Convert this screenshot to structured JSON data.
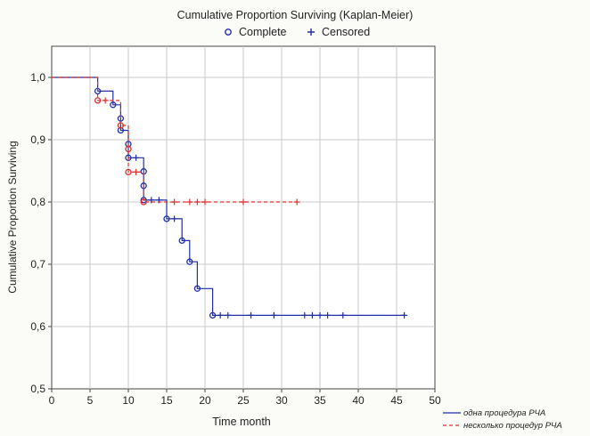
{
  "chart_data": {
    "type": "line",
    "title": "Cumulative Proportion Surviving (Kaplan-Meier)",
    "xlabel": "Time month",
    "ylabel": "Cumulative Proportion Surviving",
    "xlim": [
      0,
      50
    ],
    "ylim": [
      0.5,
      1.05
    ],
    "xticks": [
      0,
      5,
      10,
      15,
      20,
      25,
      30,
      35,
      40,
      45,
      50
    ],
    "yticks": [
      0.5,
      0.6,
      0.7,
      0.8,
      0.9,
      1.0
    ],
    "ytick_labels": [
      "0,5",
      "0,6",
      "0,7",
      "0,8",
      "0,9",
      "1,0"
    ],
    "grid": true,
    "marker_legend": [
      {
        "symbol": "o",
        "label": "Complete"
      },
      {
        "symbol": "+",
        "label": "Censored"
      }
    ],
    "series": [
      {
        "name": "одна процедура РЧА",
        "color": "#1f2fa8",
        "dash": "solid",
        "steps": [
          [
            0,
            1.0
          ],
          [
            6,
            0.978
          ],
          [
            8,
            0.956
          ],
          [
            9,
            0.934
          ],
          [
            9,
            0.915
          ],
          [
            10,
            0.893
          ],
          [
            10,
            0.871
          ],
          [
            12,
            0.849
          ],
          [
            12,
            0.826
          ],
          [
            12,
            0.803
          ],
          [
            15,
            0.773
          ],
          [
            17,
            0.738
          ],
          [
            18,
            0.704
          ],
          [
            19,
            0.661
          ],
          [
            21,
            0.618
          ],
          [
            46,
            0.618
          ]
        ],
        "events": [
          [
            6,
            0.978
          ],
          [
            8,
            0.956
          ],
          [
            9,
            0.934
          ],
          [
            9,
            0.915
          ],
          [
            10,
            0.893
          ],
          [
            10,
            0.871
          ],
          [
            12,
            0.849
          ],
          [
            12,
            0.826
          ],
          [
            12,
            0.803
          ],
          [
            15,
            0.773
          ],
          [
            17,
            0.738
          ],
          [
            18,
            0.704
          ],
          [
            19,
            0.661
          ],
          [
            21,
            0.618
          ]
        ],
        "censored": [
          [
            11,
            0.871
          ],
          [
            13,
            0.803
          ],
          [
            14,
            0.803
          ],
          [
            16,
            0.773
          ],
          [
            22,
            0.618
          ],
          [
            23,
            0.618
          ],
          [
            26,
            0.618
          ],
          [
            29,
            0.618
          ],
          [
            33,
            0.618
          ],
          [
            34,
            0.618
          ],
          [
            35,
            0.618
          ],
          [
            36,
            0.618
          ],
          [
            38,
            0.618
          ],
          [
            46,
            0.618
          ]
        ]
      },
      {
        "name": "несколько процедур РЧА",
        "color": "#e03030",
        "dash": "dashed",
        "steps": [
          [
            0,
            1.0
          ],
          [
            6,
            0.963
          ],
          [
            9,
            0.923
          ],
          [
            10,
            0.885
          ],
          [
            10,
            0.848
          ],
          [
            12,
            0.8
          ],
          [
            32,
            0.8
          ]
        ],
        "events": [
          [
            6,
            0.963
          ],
          [
            9,
            0.923
          ],
          [
            10,
            0.885
          ],
          [
            10,
            0.848
          ],
          [
            12,
            0.8
          ]
        ],
        "censored": [
          [
            7,
            0.963
          ],
          [
            11,
            0.848
          ],
          [
            16,
            0.8
          ],
          [
            18,
            0.8
          ],
          [
            19,
            0.8
          ],
          [
            20,
            0.8
          ],
          [
            25,
            0.8
          ],
          [
            32,
            0.8
          ]
        ]
      }
    ]
  }
}
